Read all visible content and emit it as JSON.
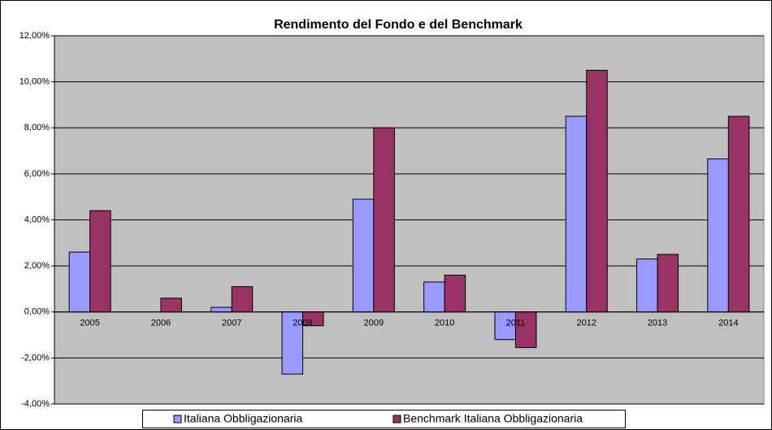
{
  "chart_data": {
    "type": "bar",
    "title": "Rendimento del Fondo e del Benchmark",
    "categories": [
      "2005",
      "2006",
      "2007",
      "2008",
      "2009",
      "2010",
      "2011",
      "2012",
      "2013",
      "2014"
    ],
    "series": [
      {
        "name": "Italiana Obbligazionaria",
        "color": "#9999ff",
        "values": [
          2.6,
          0,
          0.2,
          -2.7,
          4.9,
          1.3,
          -1.2,
          8.5,
          2.3,
          6.65
        ]
      },
      {
        "name": "Benchmark Italiana Obbligazionaria",
        "color": "#993366",
        "values": [
          4.4,
          0.6,
          1.1,
          -0.6,
          8.0,
          1.6,
          -1.55,
          10.5,
          2.5,
          8.5
        ]
      }
    ],
    "ylim": [
      -4,
      12
    ],
    "yticks": [
      {
        "value": -4,
        "label": "-4,00%"
      },
      {
        "value": -2,
        "label": "-2,00%"
      },
      {
        "value": 0,
        "label": "0,00%"
      },
      {
        "value": 2,
        "label": "2,00%"
      },
      {
        "value": 4,
        "label": "4,00%"
      },
      {
        "value": 6,
        "label": "6,00%"
      },
      {
        "value": 8,
        "label": "8,00%"
      },
      {
        "value": 10,
        "label": "10,00%"
      },
      {
        "value": 12,
        "label": "12,00%"
      }
    ],
    "grid": true,
    "legend": "bottom"
  }
}
